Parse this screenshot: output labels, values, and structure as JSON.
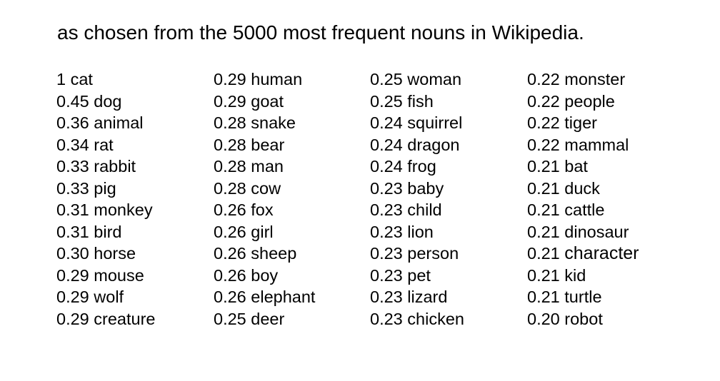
{
  "heading": "as chosen from the 5000 most frequent nouns in Wikipedia.",
  "columns": [
    [
      {
        "score": "1",
        "word": "cat"
      },
      {
        "score": "0.45",
        "word": "dog"
      },
      {
        "score": "0.36",
        "word": "animal"
      },
      {
        "score": "0.34",
        "word": "rat"
      },
      {
        "score": "0.33",
        "word": "rabbit"
      },
      {
        "score": "0.33",
        "word": "pig"
      },
      {
        "score": "0.31",
        "word": "monkey"
      },
      {
        "score": "0.31",
        "word": "bird"
      },
      {
        "score": "0.30",
        "word": "horse"
      },
      {
        "score": "0.29",
        "word": "mouse"
      },
      {
        "score": "0.29",
        "word": "wolf"
      },
      {
        "score": "0.29",
        "word": "creature"
      }
    ],
    [
      {
        "score": "0.29",
        "word": "human"
      },
      {
        "score": "0.29",
        "word": "goat"
      },
      {
        "score": "0.28",
        "word": "snake"
      },
      {
        "score": "0.28",
        "word": "bear"
      },
      {
        "score": "0.28",
        "word": "man"
      },
      {
        "score": "0.28",
        "word": "cow"
      },
      {
        "score": "0.26",
        "word": "fox"
      },
      {
        "score": "0.26",
        "word": "girl"
      },
      {
        "score": "0.26",
        "word": "sheep"
      },
      {
        "score": "0.26",
        "word": "boy"
      },
      {
        "score": "0.26",
        "word": "elephant"
      },
      {
        "score": "0.25",
        "word": "deer"
      }
    ],
    [
      {
        "score": "0.25",
        "word": "woman"
      },
      {
        "score": "0.25",
        "word": "fish"
      },
      {
        "score": "0.24",
        "word": "squirrel"
      },
      {
        "score": "0.24",
        "word": "dragon"
      },
      {
        "score": "0.24",
        "word": "frog"
      },
      {
        "score": "0.23",
        "word": "baby"
      },
      {
        "score": "0.23",
        "word": "child"
      },
      {
        "score": "0.23",
        "word": "lion"
      },
      {
        "score": "0.23",
        "word": "person"
      },
      {
        "score": "0.23",
        "word": "pet"
      },
      {
        "score": "0.23",
        "word": "lizard"
      },
      {
        "score": "0.23",
        "word": "chicken"
      }
    ],
    [
      {
        "score": "0.22",
        "word": "monster"
      },
      {
        "score": "0.22",
        "word": "people"
      },
      {
        "score": "0.22",
        "word": "tiger"
      },
      {
        "score": "0.22",
        "word": "mammal"
      },
      {
        "score": "0.21",
        "word": "bat"
      },
      {
        "score": "0.21",
        "word": "duck"
      },
      {
        "score": "0.21",
        "word": "cattle"
      },
      {
        "score": "0.21",
        "word": "dinosaur"
      },
      {
        "score": "0.21",
        "word": "character"
      },
      {
        "score": "0.21",
        "word": "kid"
      },
      {
        "score": "0.21",
        "word": "turtle"
      },
      {
        "score": "0.20",
        "word": "robot"
      }
    ]
  ]
}
